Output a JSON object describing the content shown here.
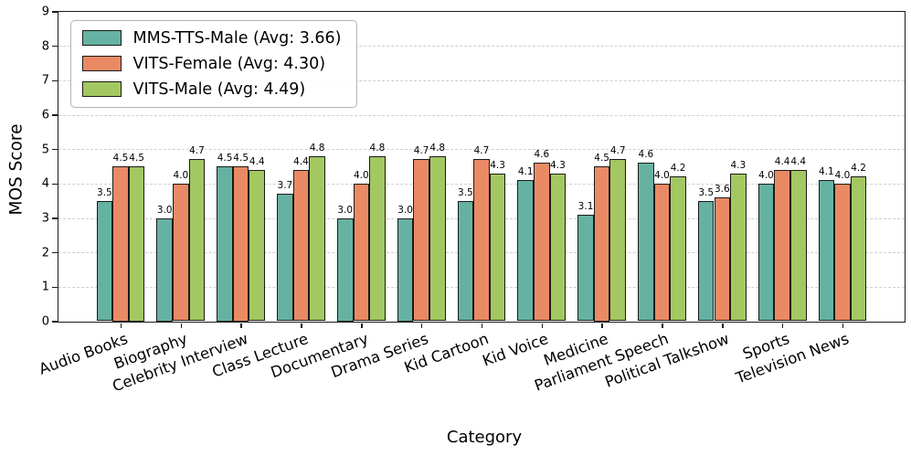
{
  "chart_data": {
    "type": "bar",
    "title": "",
    "xlabel": "Category",
    "ylabel": "MOS Score",
    "ylim": [
      0,
      9
    ],
    "yticks": [
      0,
      1,
      2,
      3,
      4,
      5,
      6,
      7,
      8,
      9
    ],
    "grid": "horizontal-dashed",
    "legend_position": "upper-left",
    "bar_label_format": "one-decimal",
    "categories": [
      "Audio Books",
      "Biography",
      "Celebrity Interview",
      "Class Lecture",
      "Documentary",
      "Drama Series",
      "Kid Cartoon",
      "Kid Voice",
      "Medicine",
      "Parliament Speech",
      "Political Talkshow",
      "Sports",
      "Television News"
    ],
    "series": [
      {
        "name": "MMS-TTS-Male (Avg: 3.66)",
        "color": "#66b2a2",
        "values": [
          3.5,
          3.0,
          4.5,
          3.7,
          3.0,
          3.0,
          3.5,
          4.1,
          3.1,
          4.6,
          3.5,
          4.0,
          4.1
        ]
      },
      {
        "name": "VITS-Female (Avg: 4.30)",
        "color": "#ea8a64",
        "values": [
          4.5,
          4.0,
          4.5,
          4.4,
          4.0,
          4.7,
          4.7,
          4.6,
          4.5,
          4.0,
          3.6,
          4.4,
          4.0
        ]
      },
      {
        "name": "VITS-Male (Avg: 4.49)",
        "color": "#a3c862",
        "values": [
          4.5,
          4.7,
          4.4,
          4.8,
          4.8,
          4.8,
          4.3,
          4.3,
          4.7,
          4.2,
          4.3,
          4.4,
          4.2
        ]
      }
    ],
    "edge_color": "#1a1a1a",
    "grid_color": "#cfcfcf"
  }
}
